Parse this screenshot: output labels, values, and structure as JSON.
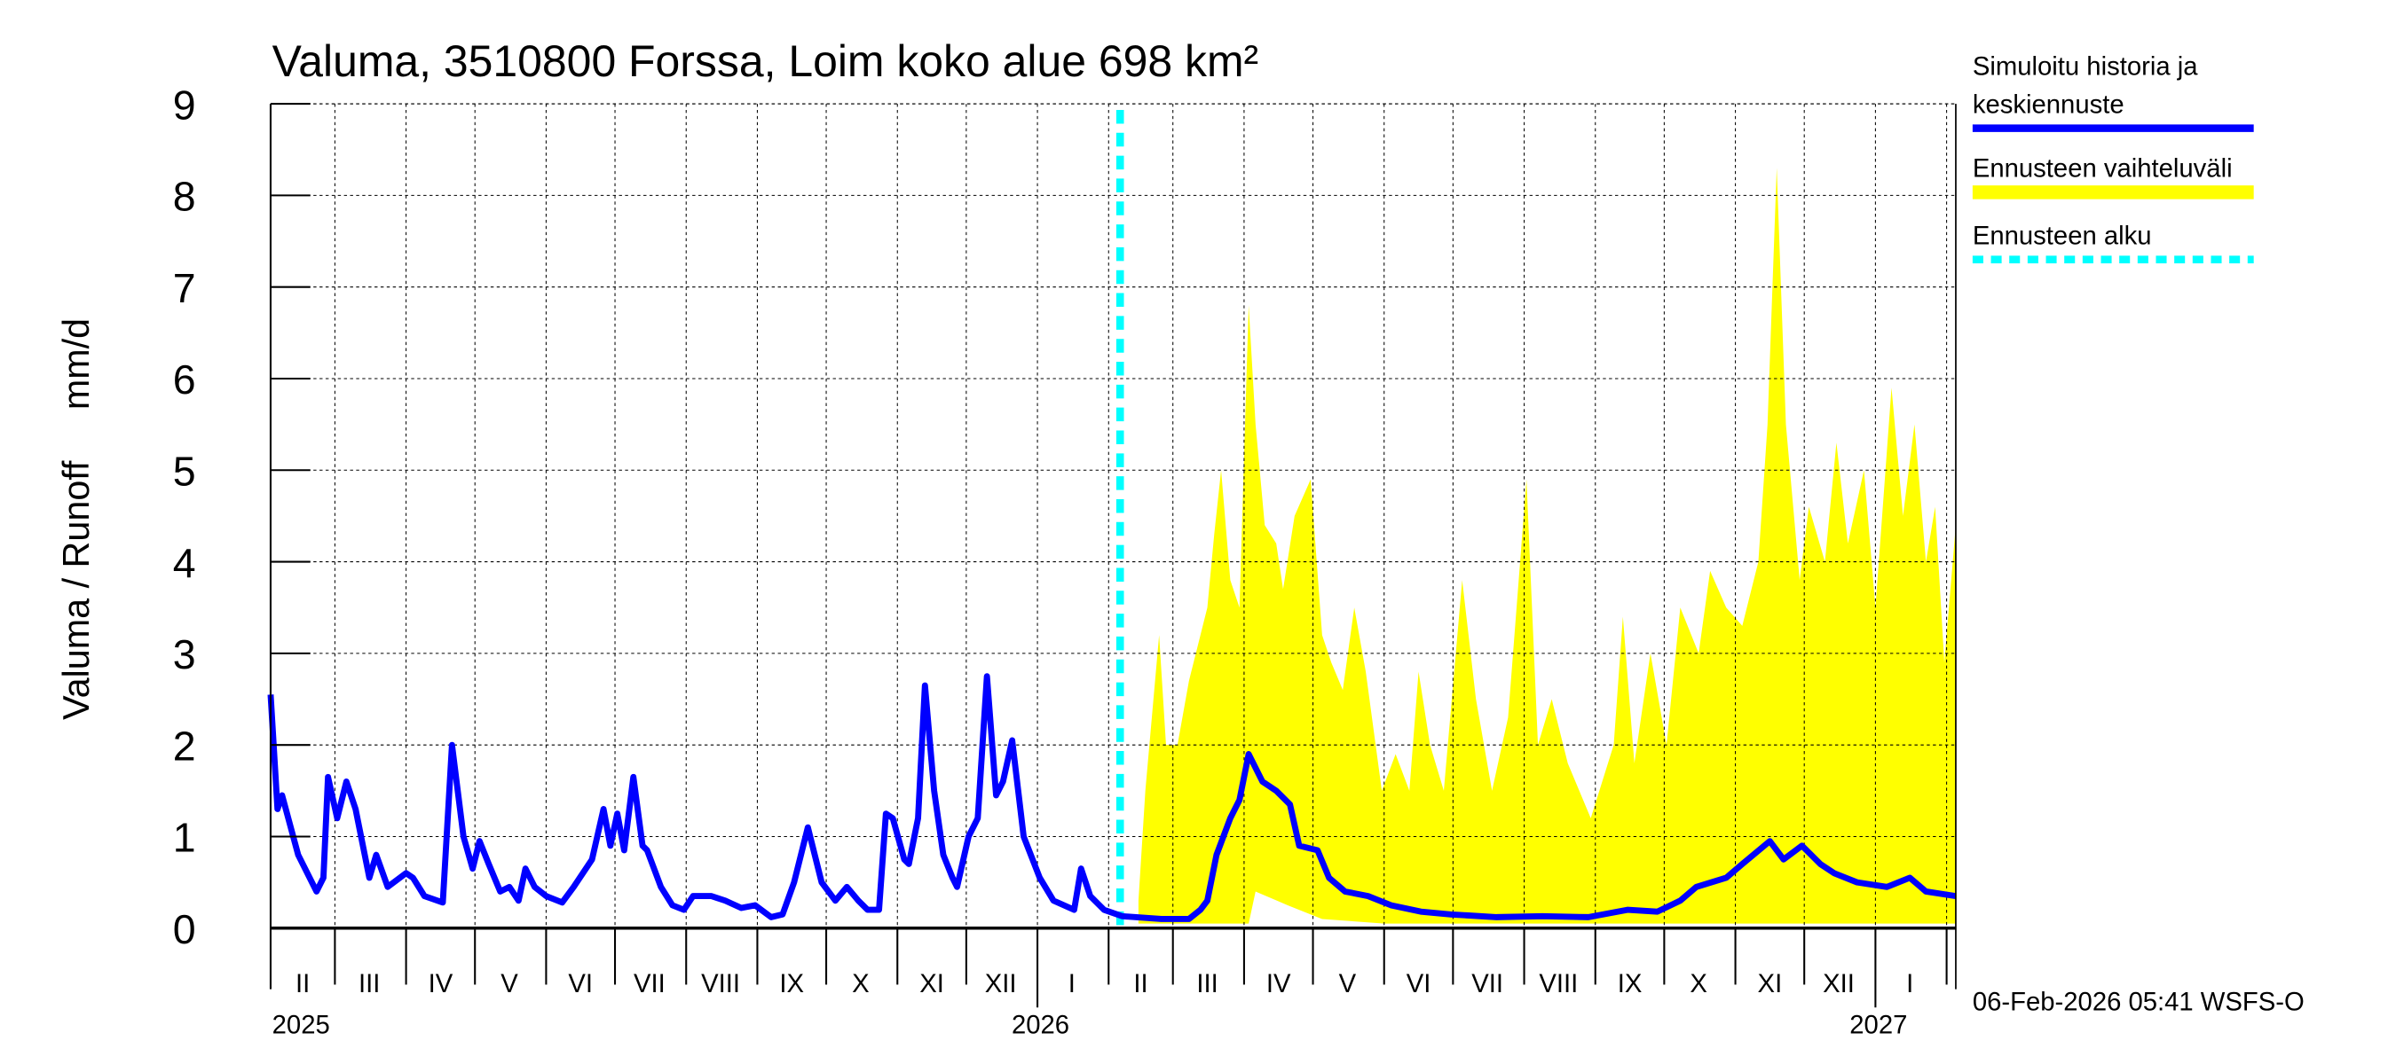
{
  "chart_data": {
    "type": "area",
    "title": "Valuma, 3510800 Forssa, Loim koko alue 698 km²",
    "ylabel": "Valuma / Runoff     mm/d",
    "ylim": [
      0,
      9
    ],
    "xlim": [
      "2025-02-01",
      "2027-02-05"
    ],
    "yticks": [
      "0",
      "1",
      "2",
      "3",
      "4",
      "5",
      "6",
      "7",
      "8",
      "9"
    ],
    "grid": true,
    "legend_placement": "right",
    "month_ticks": [
      "2025-03-01",
      "2025-04-01",
      "2025-05-01",
      "2025-06-01",
      "2025-07-01",
      "2025-08-01",
      "2025-09-01",
      "2025-10-01",
      "2025-11-01",
      "2025-12-01",
      "2026-01-01",
      "2026-02-01",
      "2026-03-01",
      "2026-04-01",
      "2026-05-01",
      "2026-06-01",
      "2026-07-01",
      "2026-08-01",
      "2026-09-01",
      "2026-10-01",
      "2026-11-01",
      "2026-12-01",
      "2027-01-01",
      "2027-02-01"
    ],
    "month_labels": [
      {
        "label": "II",
        "date": "2025-02-15"
      },
      {
        "label": "III",
        "date": "2025-03-16"
      },
      {
        "label": "IV",
        "date": "2025-04-16"
      },
      {
        "label": "V",
        "date": "2025-05-16"
      },
      {
        "label": "VI",
        "date": "2025-06-16"
      },
      {
        "label": "VII",
        "date": "2025-07-16"
      },
      {
        "label": "VIII",
        "date": "2025-08-16"
      },
      {
        "label": "IX",
        "date": "2025-09-16"
      },
      {
        "label": "X",
        "date": "2025-10-16"
      },
      {
        "label": "XI",
        "date": "2025-11-16"
      },
      {
        "label": "XII",
        "date": "2025-12-16"
      },
      {
        "label": "I",
        "date": "2026-01-16"
      },
      {
        "label": "II",
        "date": "2026-02-15"
      },
      {
        "label": "III",
        "date": "2026-03-16"
      },
      {
        "label": "IV",
        "date": "2026-04-16"
      },
      {
        "label": "V",
        "date": "2026-05-16"
      },
      {
        "label": "VI",
        "date": "2026-06-16"
      },
      {
        "label": "VII",
        "date": "2026-07-16"
      },
      {
        "label": "VIII",
        "date": "2026-08-16"
      },
      {
        "label": "IX",
        "date": "2026-09-16"
      },
      {
        "label": "X",
        "date": "2026-10-16"
      },
      {
        "label": "XI",
        "date": "2026-11-16"
      },
      {
        "label": "XII",
        "date": "2026-12-16"
      },
      {
        "label": "I",
        "date": "2027-01-16"
      }
    ],
    "year_labels": [
      {
        "label": "2025",
        "date": "2025-02-01"
      },
      {
        "label": "2026",
        "date": "2026-01-01"
      },
      {
        "label": "2027",
        "date": "2027-01-01"
      }
    ],
    "forecast_start": "2026-02-06",
    "series": [
      {
        "name": "Simuloitu historia ja keskiennuste",
        "color": "#0000ff",
        "points": [
          [
            "2025-02-01",
            2.55
          ],
          [
            "2025-02-04",
            1.3
          ],
          [
            "2025-02-06",
            1.45
          ],
          [
            "2025-02-13",
            0.8
          ],
          [
            "2025-02-21",
            0.4
          ],
          [
            "2025-02-24",
            0.55
          ],
          [
            "2025-02-26",
            1.65
          ],
          [
            "2025-03-02",
            1.2
          ],
          [
            "2025-03-06",
            1.6
          ],
          [
            "2025-03-10",
            1.3
          ],
          [
            "2025-03-14",
            0.8
          ],
          [
            "2025-03-16",
            0.55
          ],
          [
            "2025-03-19",
            0.8
          ],
          [
            "2025-03-24",
            0.45
          ],
          [
            "2025-04-01",
            0.6
          ],
          [
            "2025-04-04",
            0.55
          ],
          [
            "2025-04-09",
            0.35
          ],
          [
            "2025-04-17",
            0.28
          ],
          [
            "2025-04-21",
            2.0
          ],
          [
            "2025-04-26",
            1.0
          ],
          [
            "2025-04-30",
            0.65
          ],
          [
            "2025-05-03",
            0.95
          ],
          [
            "2025-05-07",
            0.7
          ],
          [
            "2025-05-12",
            0.4
          ],
          [
            "2025-05-16",
            0.45
          ],
          [
            "2025-05-20",
            0.3
          ],
          [
            "2025-05-23",
            0.65
          ],
          [
            "2025-05-27",
            0.45
          ],
          [
            "2025-06-01",
            0.35
          ],
          [
            "2025-06-08",
            0.28
          ],
          [
            "2025-06-13",
            0.45
          ],
          [
            "2025-06-21",
            0.75
          ],
          [
            "2025-06-26",
            1.3
          ],
          [
            "2025-06-29",
            0.9
          ],
          [
            "2025-07-02",
            1.25
          ],
          [
            "2025-07-05",
            0.85
          ],
          [
            "2025-07-09",
            1.65
          ],
          [
            "2025-07-13",
            0.9
          ],
          [
            "2025-07-15",
            0.85
          ],
          [
            "2025-07-21",
            0.45
          ],
          [
            "2025-07-26",
            0.25
          ],
          [
            "2025-07-31",
            0.2
          ],
          [
            "2025-08-04",
            0.35
          ],
          [
            "2025-08-12",
            0.35
          ],
          [
            "2025-08-18",
            0.3
          ],
          [
            "2025-08-25",
            0.22
          ],
          [
            "2025-08-31",
            0.25
          ],
          [
            "2025-09-07",
            0.12
          ],
          [
            "2025-09-12",
            0.15
          ],
          [
            "2025-09-17",
            0.5
          ],
          [
            "2025-09-23",
            1.1
          ],
          [
            "2025-09-29",
            0.5
          ],
          [
            "2025-10-05",
            0.3
          ],
          [
            "2025-10-10",
            0.45
          ],
          [
            "2025-10-15",
            0.3
          ],
          [
            "2025-10-19",
            0.2
          ],
          [
            "2025-10-24",
            0.2
          ],
          [
            "2025-10-27",
            1.25
          ],
          [
            "2025-10-30",
            1.2
          ],
          [
            "2025-11-04",
            0.75
          ],
          [
            "2025-11-06",
            0.7
          ],
          [
            "2025-11-10",
            1.2
          ],
          [
            "2025-11-13",
            2.65
          ],
          [
            "2025-11-17",
            1.5
          ],
          [
            "2025-11-21",
            0.8
          ],
          [
            "2025-11-25",
            0.55
          ],
          [
            "2025-11-27",
            0.45
          ],
          [
            "2025-12-02",
            1.0
          ],
          [
            "2025-12-06",
            1.2
          ],
          [
            "2025-12-10",
            2.75
          ],
          [
            "2025-12-14",
            1.45
          ],
          [
            "2025-12-17",
            1.6
          ],
          [
            "2025-12-21",
            2.05
          ],
          [
            "2025-12-26",
            1.0
          ],
          [
            "2026-01-02",
            0.55
          ],
          [
            "2026-01-08",
            0.3
          ],
          [
            "2026-01-17",
            0.2
          ],
          [
            "2026-01-20",
            0.65
          ],
          [
            "2026-01-24",
            0.35
          ],
          [
            "2026-01-30",
            0.2
          ],
          [
            "2026-02-07",
            0.13
          ],
          [
            "2026-02-24",
            0.1
          ],
          [
            "2026-03-08",
            0.1
          ],
          [
            "2026-03-13",
            0.2
          ],
          [
            "2026-03-16",
            0.3
          ],
          [
            "2026-03-20",
            0.8
          ],
          [
            "2026-03-26",
            1.2
          ],
          [
            "2026-03-30",
            1.4
          ],
          [
            "2026-04-03",
            1.9
          ],
          [
            "2026-04-09",
            1.6
          ],
          [
            "2026-04-15",
            1.5
          ],
          [
            "2026-04-21",
            1.35
          ],
          [
            "2026-04-25",
            0.9
          ],
          [
            "2026-05-03",
            0.85
          ],
          [
            "2026-05-08",
            0.55
          ],
          [
            "2026-05-15",
            0.4
          ],
          [
            "2026-05-25",
            0.35
          ],
          [
            "2026-06-04",
            0.25
          ],
          [
            "2026-06-17",
            0.18
          ],
          [
            "2026-06-30",
            0.15
          ],
          [
            "2026-07-20",
            0.12
          ],
          [
            "2026-08-09",
            0.13
          ],
          [
            "2026-08-29",
            0.12
          ],
          [
            "2026-09-15",
            0.2
          ],
          [
            "2026-09-28",
            0.18
          ],
          [
            "2026-10-08",
            0.3
          ],
          [
            "2026-10-15",
            0.45
          ],
          [
            "2026-10-28",
            0.55
          ],
          [
            "2026-11-04",
            0.7
          ],
          [
            "2026-11-16",
            0.95
          ],
          [
            "2026-11-22",
            0.75
          ],
          [
            "2026-11-30",
            0.9
          ],
          [
            "2026-12-08",
            0.7
          ],
          [
            "2026-12-14",
            0.6
          ],
          [
            "2026-12-24",
            0.5
          ],
          [
            "2027-01-06",
            0.45
          ],
          [
            "2027-01-16",
            0.55
          ],
          [
            "2027-01-23",
            0.4
          ],
          [
            "2027-02-05",
            0.35
          ]
        ]
      },
      {
        "name": "Ennusteen vaihteluväli",
        "color": "#ffff00",
        "upper": [
          [
            "2026-02-14",
            0.3
          ],
          [
            "2026-02-17",
            1.5
          ],
          [
            "2026-02-23",
            3.2
          ],
          [
            "2026-02-26",
            2.0
          ],
          [
            "2026-03-03",
            2.0
          ],
          [
            "2026-03-08",
            2.7
          ],
          [
            "2026-03-16",
            3.5
          ],
          [
            "2026-03-19",
            4.3
          ],
          [
            "2026-03-22",
            5.0
          ],
          [
            "2026-03-26",
            3.8
          ],
          [
            "2026-03-30",
            3.5
          ],
          [
            "2026-04-03",
            6.8
          ],
          [
            "2026-04-06",
            5.5
          ],
          [
            "2026-04-10",
            4.4
          ],
          [
            "2026-04-15",
            4.2
          ],
          [
            "2026-04-18",
            3.7
          ],
          [
            "2026-04-23",
            4.5
          ],
          [
            "2026-04-30",
            4.9
          ],
          [
            "2026-05-05",
            3.2
          ],
          [
            "2026-05-09",
            2.9
          ],
          [
            "2026-05-14",
            2.6
          ],
          [
            "2026-05-19",
            3.5
          ],
          [
            "2026-05-24",
            2.8
          ],
          [
            "2026-05-31",
            1.5
          ],
          [
            "2026-06-06",
            1.9
          ],
          [
            "2026-06-12",
            1.5
          ],
          [
            "2026-06-16",
            2.8
          ],
          [
            "2026-06-21",
            2.0
          ],
          [
            "2026-06-27",
            1.5
          ],
          [
            "2026-07-05",
            3.8
          ],
          [
            "2026-07-11",
            2.5
          ],
          [
            "2026-07-18",
            1.5
          ],
          [
            "2026-07-25",
            2.3
          ],
          [
            "2026-08-02",
            4.9
          ],
          [
            "2026-08-07",
            2.0
          ],
          [
            "2026-08-13",
            2.5
          ],
          [
            "2026-08-20",
            1.8
          ],
          [
            "2026-08-30",
            1.2
          ],
          [
            "2026-09-09",
            2.0
          ],
          [
            "2026-09-13",
            3.4
          ],
          [
            "2026-09-18",
            1.8
          ],
          [
            "2026-09-25",
            3.0
          ],
          [
            "2026-10-02",
            2.0
          ],
          [
            "2026-10-08",
            3.5
          ],
          [
            "2026-10-16",
            3.0
          ],
          [
            "2026-10-21",
            3.9
          ],
          [
            "2026-10-28",
            3.5
          ],
          [
            "2026-11-04",
            3.3
          ],
          [
            "2026-11-11",
            4.0
          ],
          [
            "2026-11-15",
            5.5
          ],
          [
            "2026-11-19",
            8.3
          ],
          [
            "2026-11-23",
            5.5
          ],
          [
            "2026-11-29",
            3.8
          ],
          [
            "2026-12-03",
            4.6
          ],
          [
            "2026-12-10",
            4.0
          ],
          [
            "2026-12-15",
            5.3
          ],
          [
            "2026-12-20",
            4.2
          ],
          [
            "2026-12-27",
            5.0
          ],
          [
            "2027-01-01",
            3.5
          ],
          [
            "2027-01-08",
            5.9
          ],
          [
            "2027-01-13",
            4.5
          ],
          [
            "2027-01-18",
            5.5
          ],
          [
            "2027-01-23",
            4.0
          ],
          [
            "2027-01-27",
            4.6
          ],
          [
            "2027-01-31",
            2.9
          ],
          [
            "2027-02-05",
            4.4
          ]
        ],
        "lower": [
          [
            "2026-02-14",
            0.05
          ],
          [
            "2026-04-03",
            0.05
          ],
          [
            "2026-04-06",
            0.4
          ],
          [
            "2026-04-20",
            0.25
          ],
          [
            "2026-05-05",
            0.1
          ],
          [
            "2026-06-01",
            0.05
          ],
          [
            "2027-02-05",
            0.05
          ]
        ]
      },
      {
        "name": "Ennusteen alku",
        "color": "#00ffff"
      }
    ],
    "legend": [
      {
        "line1": "Simuloitu historia ja",
        "line2": "keskiennuste",
        "color": "#0000ff",
        "style": "solid"
      },
      {
        "line1": "Ennusteen vaihteluväli",
        "color": "#ffff00",
        "style": "solid"
      },
      {
        "line1": "Ennusteen alku",
        "color": "#00ffff",
        "style": "dashed"
      }
    ],
    "footer": "06-Feb-2026 05:41 WSFS-O"
  }
}
